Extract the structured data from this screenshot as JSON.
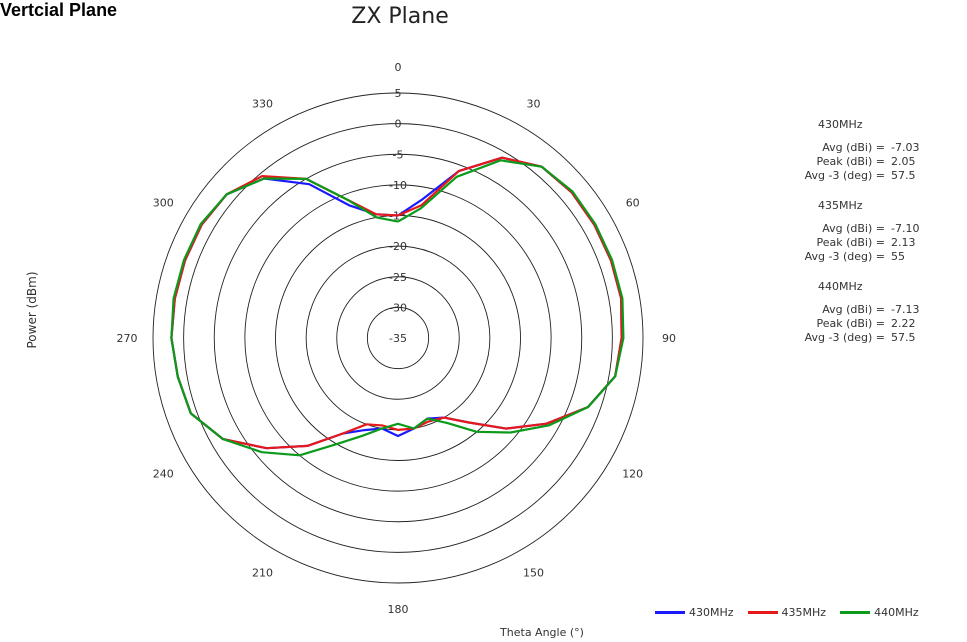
{
  "page": {
    "section_title": "Vertcial Plane"
  },
  "chart_data": {
    "type": "polar-line",
    "title": "ZX Plane",
    "radial_label": "Power (dBm)",
    "angular_label": "Theta Angle (°)",
    "radial_range": [
      -35,
      5
    ],
    "radial_ticks": [
      "5",
      "0",
      "-5",
      "-10",
      "-15",
      "-20",
      "-25",
      "-30",
      "-35"
    ],
    "radial_tick_values": [
      5,
      0,
      -5,
      -10,
      -15,
      -20,
      -25,
      -30,
      -35
    ],
    "angle_ticks": [
      "0",
      "30",
      "60",
      "90",
      "120",
      "150",
      "180",
      "210",
      "240",
      "270",
      "300",
      "330"
    ],
    "angle_tick_values": [
      0,
      30,
      60,
      90,
      120,
      150,
      180,
      210,
      240,
      270,
      300,
      330
    ],
    "angle_zero": "top",
    "angle_direction": "clockwise",
    "grid": true,
    "theta": [
      0,
      10,
      20,
      30,
      40,
      50,
      60,
      70,
      80,
      90,
      100,
      110,
      120,
      130,
      140,
      150,
      160,
      170,
      180,
      190,
      200,
      210,
      220,
      230,
      240,
      250,
      260,
      270,
      280,
      290,
      300,
      310,
      320,
      330,
      340,
      350,
      360
    ],
    "series": [
      {
        "name": "430MHz",
        "color": "#1a1aff",
        "values": [
          -15,
          -12,
          -6,
          -1,
          1.5,
          2,
          2,
          2,
          2,
          1.5,
          1,
          -2,
          -7,
          -12,
          -17,
          -20,
          -21,
          -20,
          -19,
          -20,
          -19,
          -17,
          -12,
          -7,
          -2,
          1,
          1.5,
          2,
          2,
          2,
          2,
          1.5,
          -1,
          -6,
          -12,
          -14.5,
          -15
        ]
      },
      {
        "name": "435MHz",
        "color": "#e6191a",
        "values": [
          -15,
          -13,
          -6,
          -1,
          1.5,
          2,
          2,
          2,
          2,
          1.5,
          1,
          -2,
          -7,
          -12,
          -17,
          -20,
          -20.5,
          -20,
          -20,
          -20.5,
          -20,
          -17,
          -12,
          -7,
          -2,
          1,
          1.5,
          2,
          2,
          2,
          2,
          1.5,
          -0.5,
          -5,
          -11,
          -14.5,
          -15
        ]
      },
      {
        "name": "440MHz",
        "color": "#0b9a1a",
        "values": [
          -16,
          -13.5,
          -7,
          -1.5,
          1.5,
          2.2,
          2.2,
          2.2,
          2.2,
          1.8,
          1,
          -2,
          -6.5,
          -11,
          -15,
          -19,
          -21,
          -20,
          -21,
          -20,
          -18,
          -15,
          -10,
          -6,
          -2,
          1,
          1.5,
          2,
          2.2,
          2.2,
          2.2,
          1.5,
          -1,
          -5,
          -11,
          -15,
          -16
        ]
      }
    ],
    "stats": [
      {
        "freq": "430MHz",
        "rows": [
          {
            "label": "Avg (dBi) =",
            "value": "-7.03"
          },
          {
            "label": "Peak (dBi) =",
            "value": "2.05"
          },
          {
            "label": "Avg -3 (deg) =",
            "value": "57.5"
          }
        ]
      },
      {
        "freq": "435MHz",
        "rows": [
          {
            "label": "Avg (dBi) =",
            "value": "-7.10"
          },
          {
            "label": "Peak (dBi) =",
            "value": "2.13"
          },
          {
            "label": "Avg -3 (deg) =",
            "value": "55"
          }
        ]
      },
      {
        "freq": "440MHz",
        "rows": [
          {
            "label": "Avg (dBi) =",
            "value": "-7.13"
          },
          {
            "label": "Peak (dBi) =",
            "value": "2.22"
          },
          {
            "label": "Avg -3 (deg) =",
            "value": "57.5"
          }
        ]
      }
    ],
    "legend_position": "bottom-right"
  }
}
